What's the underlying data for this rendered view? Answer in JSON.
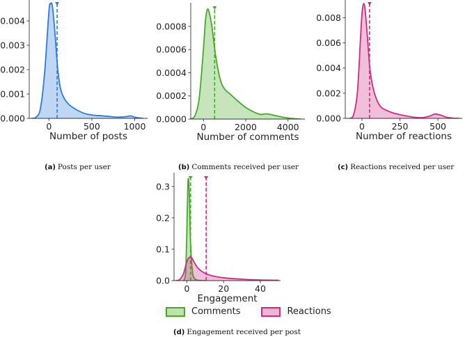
{
  "chart_data": [
    {
      "id": "a",
      "type": "area",
      "caption_label": "(a)",
      "caption": "Posts per user",
      "xlabel": "Number of posts",
      "xlim": [
        -230,
        1150
      ],
      "ylim": [
        0,
        0.0048
      ],
      "xticks": [
        0,
        500,
        1000
      ],
      "xtick_labels": [
        "0",
        "500",
        "1000"
      ],
      "yticks": [
        0,
        0.001,
        0.002,
        0.003,
        0.004
      ],
      "ytick_labels": [
        "0.000",
        "0.001",
        "0.002",
        "0.003",
        "0.004"
      ],
      "series": [
        {
          "name": "Posts",
          "color": "#2b7bdb",
          "x": [
            -200,
            -150,
            -100,
            -50,
            0,
            20,
            40,
            70,
            100,
            130,
            160,
            200,
            250,
            300,
            350,
            400,
            450,
            500,
            550,
            600,
            700,
            800,
            900,
            950,
            1000,
            1050,
            1100
          ],
          "y": [
            0.0,
            5e-05,
            0.0004,
            0.0019,
            0.0044,
            0.0047,
            0.0046,
            0.0035,
            0.0021,
            0.0013,
            0.00095,
            0.0007,
            0.00052,
            0.0004,
            0.0003,
            0.00022,
            0.00017,
            0.00014,
            0.00012,
            0.00011,
            8e-05,
            5e-05,
            7e-05,
            0.0001,
            5e-05,
            2e-05,
            0.0
          ],
          "mean": 95
        }
      ]
    },
    {
      "id": "b",
      "type": "area",
      "caption_label": "(b)",
      "caption": "Comments received per user",
      "xlabel": "Number of comments",
      "xlim": [
        -600,
        4800
      ],
      "ylim": [
        0,
        0.00098
      ],
      "xticks": [
        0,
        2000,
        4000
      ],
      "xtick_labels": [
        "0",
        "2000",
        "4000"
      ],
      "yticks": [
        0,
        0.0002,
        0.0004,
        0.0006,
        0.0008
      ],
      "ytick_labels": [
        "0.0000",
        "0.0002",
        "0.0004",
        "0.0006",
        "0.0008"
      ],
      "series": [
        {
          "name": "Comments",
          "color": "#46a826",
          "x": [
            -600,
            -400,
            -200,
            0,
            100,
            200,
            300,
            400,
            600,
            800,
            1000,
            1300,
            1600,
            2000,
            2400,
            2700,
            3000,
            3400,
            3800,
            4200,
            4600
          ],
          "y": [
            0.0,
            3e-05,
            0.00018,
            0.0006,
            0.00086,
            0.00095,
            0.0009,
            0.0008,
            0.00052,
            0.00034,
            0.00026,
            0.00021,
            0.00016,
            0.0001,
            6e-05,
            4e-05,
            4.5e-05,
            3e-05,
            1.5e-05,
            5e-06,
            0.0
          ],
          "mean": 530
        }
      ]
    },
    {
      "id": "c",
      "type": "area",
      "caption_label": "(c)",
      "caption": "Reactions received per user",
      "xlabel": "Number of reactions",
      "xlim": [
        -110,
        660
      ],
      "ylim": [
        0,
        0.0093
      ],
      "xticks": [
        0,
        250,
        500
      ],
      "xtick_labels": [
        "0",
        "250",
        "500"
      ],
      "yticks": [
        0,
        0.002,
        0.004,
        0.006,
        0.008
      ],
      "ytick_labels": [
        "0.000",
        "0.002",
        "0.004",
        "0.006",
        "0.008"
      ],
      "series": [
        {
          "name": "Reactions",
          "color": "#cc2b86",
          "x": [
            -80,
            -55,
            -30,
            -10,
            0,
            10,
            20,
            35,
            50,
            65,
            80,
            100,
            125,
            150,
            200,
            250,
            300,
            350,
            400,
            450,
            480,
            520,
            560,
            600,
            640
          ],
          "y": [
            0.0,
            0.0003,
            0.0021,
            0.0063,
            0.0083,
            0.0091,
            0.0087,
            0.0066,
            0.0042,
            0.0029,
            0.0021,
            0.0014,
            0.0009,
            0.0007,
            0.00045,
            0.0003,
            0.00018,
            8e-05,
            6e-05,
            0.0002,
            0.00035,
            0.00025,
            8e-05,
            2e-05,
            0.0
          ],
          "mean": 50
        }
      ]
    },
    {
      "id": "d",
      "type": "area",
      "caption_label": "(d)",
      "caption": "Engagement received per post",
      "xlabel": "Engagement",
      "xlim": [
        -7,
        51
      ],
      "ylim": [
        0,
        0.335
      ],
      "xticks": [
        0,
        20,
        40
      ],
      "xtick_labels": [
        "0",
        "20",
        "40"
      ],
      "yticks": [
        0,
        0.1,
        0.2,
        0.3
      ],
      "ytick_labels": [
        "0.0",
        "0.1",
        "0.2",
        "0.3"
      ],
      "legend": [
        "Comments",
        "Reactions"
      ],
      "series": [
        {
          "name": "Comments",
          "color": "#46a826",
          "x": [
            -2,
            -1,
            -0.5,
            0,
            0.5,
            1,
            1.5,
            2,
            3,
            4,
            5,
            6,
            8,
            10
          ],
          "y": [
            0.0,
            0.01,
            0.05,
            0.16,
            0.3,
            0.32,
            0.24,
            0.12,
            0.03,
            0.008,
            0.003,
            0.001,
            0.0003,
            0.0
          ],
          "mean": 2
        },
        {
          "name": "Reactions",
          "color": "#cc2b86",
          "x": [
            -6,
            -4,
            -2,
            -1,
            0,
            1,
            2,
            3,
            4,
            6,
            8,
            10,
            14,
            20,
            30,
            40,
            50
          ],
          "y": [
            0.0,
            0.003,
            0.02,
            0.04,
            0.06,
            0.072,
            0.075,
            0.07,
            0.058,
            0.04,
            0.03,
            0.023,
            0.015,
            0.009,
            0.0045,
            0.002,
            0.001
          ],
          "mean": 10.5
        }
      ]
    }
  ]
}
